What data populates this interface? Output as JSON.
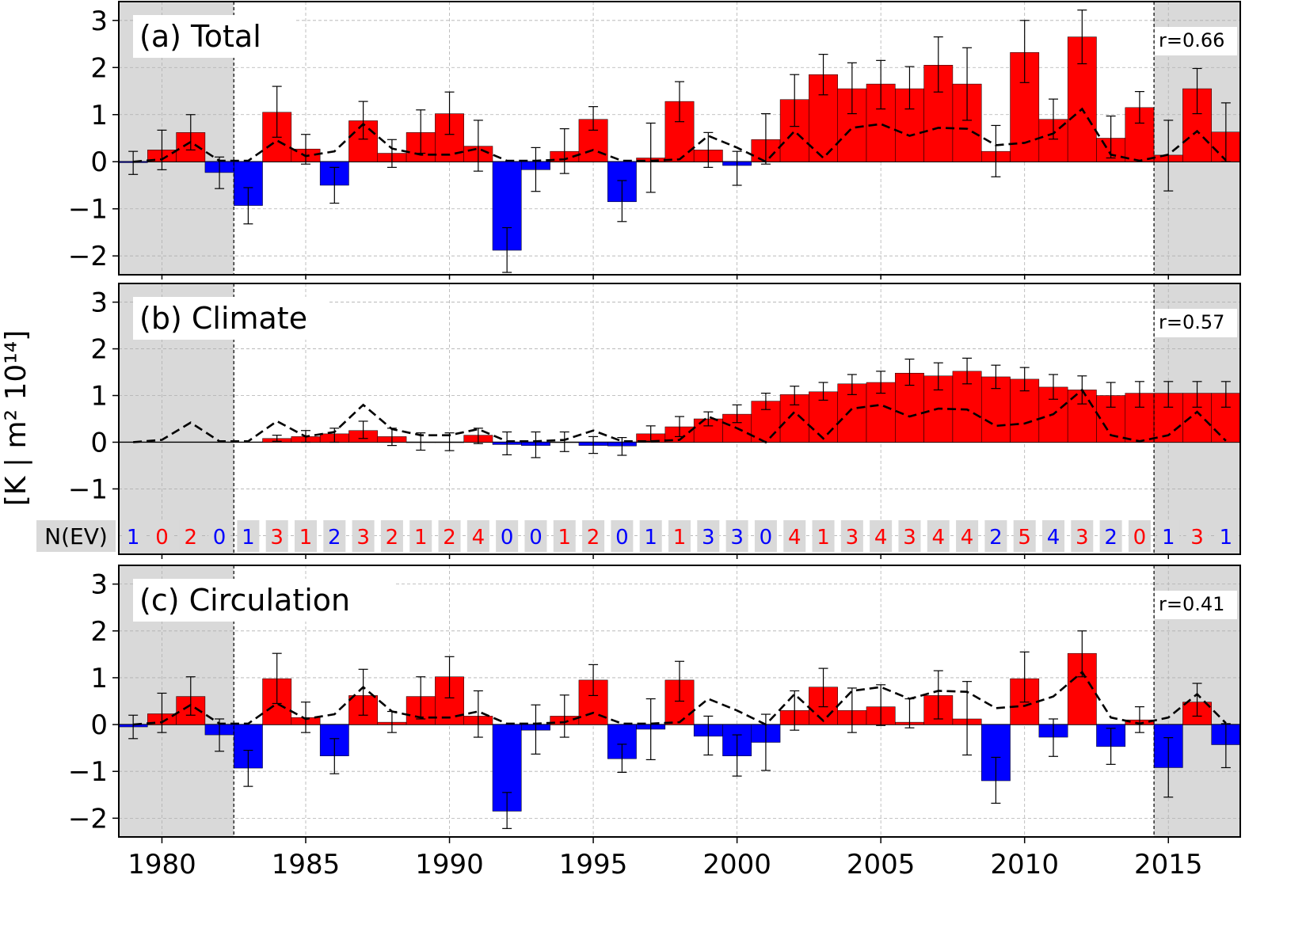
{
  "chart_data": [
    {
      "type": "bar",
      "title": "(a) Total",
      "annotation": "r=0.66",
      "x": [
        1979,
        1980,
        1981,
        1982,
        1983,
        1984,
        1985,
        1986,
        1987,
        1988,
        1989,
        1990,
        1991,
        1992,
        1993,
        1994,
        1995,
        1996,
        1997,
        1998,
        1999,
        2000,
        2001,
        2002,
        2003,
        2004,
        2005,
        2006,
        2007,
        2008,
        2009,
        2010,
        2011,
        2012,
        2013,
        2014,
        2015,
        2016,
        2017
      ],
      "values": [
        -0.02,
        0.25,
        0.62,
        -0.23,
        -0.93,
        1.05,
        0.27,
        -0.5,
        0.87,
        0.18,
        0.62,
        1.02,
        0.33,
        -1.88,
        -0.17,
        0.22,
        0.9,
        -0.85,
        0.08,
        1.28,
        0.25,
        -0.08,
        0.47,
        1.32,
        1.85,
        1.55,
        1.65,
        1.55,
        2.05,
        1.65,
        0.22,
        2.32,
        0.9,
        2.65,
        0.5,
        1.15,
        0.14,
        1.55,
        0.63
      ],
      "err_low": [
        -0.27,
        -0.17,
        0.25,
        -0.57,
        -1.32,
        0.52,
        -0.05,
        -0.88,
        0.48,
        -0.12,
        0.18,
        0.58,
        -0.2,
        -2.35,
        -0.63,
        -0.25,
        0.67,
        -1.27,
        -0.65,
        0.85,
        -0.12,
        -0.5,
        -0.05,
        0.75,
        1.42,
        1.02,
        1.12,
        1.12,
        1.48,
        0.88,
        -0.32,
        1.68,
        0.48,
        2.08,
        0.08,
        0.82,
        -0.62,
        1.02,
        0.0
      ],
      "err_high": [
        0.22,
        0.67,
        1.0,
        0.1,
        -0.55,
        1.6,
        0.58,
        -0.12,
        1.28,
        0.47,
        1.1,
        1.48,
        0.88,
        -1.4,
        0.3,
        0.7,
        1.17,
        -0.4,
        0.82,
        1.7,
        0.62,
        0.22,
        1.02,
        1.85,
        2.28,
        2.1,
        2.15,
        2.02,
        2.65,
        2.42,
        0.77,
        3.0,
        1.33,
        3.22,
        0.97,
        1.49,
        0.88,
        1.98,
        1.25
      ],
      "reference_dashed": [
        0.0,
        0.05,
        0.42,
        0.02,
        0.02,
        0.45,
        0.12,
        0.22,
        0.8,
        0.28,
        0.15,
        0.15,
        0.28,
        0.02,
        0.02,
        0.05,
        0.25,
        0.02,
        0.02,
        0.05,
        0.55,
        0.3,
        0.0,
        0.65,
        0.08,
        0.72,
        0.8,
        0.55,
        0.72,
        0.7,
        0.35,
        0.4,
        0.6,
        1.12,
        0.15,
        0.02,
        0.15,
        0.65,
        0.03
      ],
      "ylim": [
        -2.4,
        3.4
      ],
      "yticks": [
        "−2",
        "−1",
        "0",
        "1",
        "2",
        "3"
      ],
      "grid": true,
      "shaded_periods": [
        [
          1978.5,
          1982.5
        ],
        [
          2014.5,
          2017.5
        ]
      ]
    },
    {
      "type": "bar",
      "title": "(b) Climate",
      "annotation": "r=0.57",
      "ylabel": "[K | m² 10¹⁴]",
      "x": [
        1984,
        1985,
        1986,
        1987,
        1988,
        1989,
        1990,
        1991,
        1992,
        1993,
        1994,
        1995,
        1996,
        1997,
        1998,
        1999,
        2000,
        2001,
        2002,
        2003,
        2004,
        2005,
        2006,
        2007,
        2008,
        2009,
        2010,
        2011,
        2012,
        2013,
        2014,
        2015,
        2016,
        2017
      ],
      "values": [
        0.08,
        0.12,
        0.18,
        0.25,
        0.12,
        0.0,
        0.0,
        0.15,
        -0.05,
        -0.07,
        0.0,
        -0.07,
        -0.08,
        0.18,
        0.33,
        0.5,
        0.6,
        0.88,
        1.02,
        1.08,
        1.25,
        1.28,
        1.48,
        1.42,
        1.52,
        1.4,
        1.35,
        1.18,
        1.12,
        1.0,
        1.05,
        1.05,
        1.05,
        1.05
      ],
      "err_low": [
        0.02,
        0.0,
        0.0,
        0.08,
        -0.07,
        -0.17,
        -0.18,
        -0.03,
        -0.27,
        -0.33,
        -0.2,
        -0.24,
        -0.28,
        0.02,
        0.12,
        0.35,
        0.42,
        0.7,
        0.8,
        0.9,
        1.02,
        1.05,
        1.22,
        1.12,
        1.25,
        1.15,
        1.1,
        0.92,
        0.82,
        0.75,
        0.75,
        0.75,
        0.75,
        0.75
      ],
      "err_high": [
        0.15,
        0.25,
        0.3,
        0.45,
        0.3,
        0.2,
        0.2,
        0.3,
        0.22,
        0.22,
        0.22,
        0.12,
        0.1,
        0.35,
        0.55,
        0.65,
        0.8,
        1.05,
        1.2,
        1.28,
        1.45,
        1.52,
        1.78,
        1.7,
        1.8,
        1.65,
        1.6,
        1.45,
        1.42,
        1.28,
        1.3,
        1.3,
        1.3,
        1.3
      ],
      "reference_dashed": [
        0.0,
        0.05,
        0.42,
        0.02,
        0.02,
        0.45,
        0.12,
        0.22,
        0.8,
        0.28,
        0.15,
        0.15,
        0.28,
        0.02,
        0.02,
        0.05,
        0.25,
        0.02,
        0.02,
        0.05,
        0.55,
        0.3,
        0.0,
        0.65,
        0.08,
        0.72,
        0.8,
        0.55,
        0.72,
        0.7,
        0.35,
        0.4,
        0.6,
        1.12,
        0.15,
        0.02,
        0.15,
        0.65,
        0.03
      ],
      "reference_x": [
        1979,
        1980,
        1981,
        1982,
        1983,
        1984,
        1985,
        1986,
        1987,
        1988,
        1989,
        1990,
        1991,
        1992,
        1993,
        1994,
        1995,
        1996,
        1997,
        1998,
        1999,
        2000,
        2001,
        2002,
        2003,
        2004,
        2005,
        2006,
        2007,
        2008,
        2009,
        2010,
        2011,
        2012,
        2013,
        2014,
        2015,
        2016,
        2017
      ],
      "ylim": [
        -2.4,
        3.4
      ],
      "yticks": [
        "−1",
        "0",
        "1",
        "2",
        "3"
      ],
      "grid": true,
      "nev_label": "N(EV)",
      "nev_values": [
        "1",
        "0",
        "2",
        "0",
        "1",
        "3",
        "1",
        "2",
        "3",
        "2",
        "1",
        "2",
        "4",
        "0",
        "0",
        "1",
        "2",
        "0",
        "1",
        "1",
        "3",
        "3",
        "0",
        "4",
        "1",
        "3",
        "4",
        "3",
        "4",
        "4",
        "2",
        "5",
        "4",
        "3",
        "2",
        "0",
        "1",
        "3",
        "1"
      ],
      "nev_colors": [
        "#0000ff",
        "#ff0000",
        "#ff0000",
        "#0000ff",
        "#0000ff",
        "#ff0000",
        "#ff0000",
        "#0000ff",
        "#ff0000",
        "#ff0000",
        "#ff0000",
        "#ff0000",
        "#ff0000",
        "#0000ff",
        "#0000ff",
        "#ff0000",
        "#ff0000",
        "#0000ff",
        "#0000ff",
        "#ff0000",
        "#0000ff",
        "#0000ff",
        "#0000ff",
        "#ff0000",
        "#ff0000",
        "#ff0000",
        "#ff0000",
        "#ff0000",
        "#ff0000",
        "#ff0000",
        "#0000ff",
        "#ff0000",
        "#0000ff",
        "#ff0000",
        "#0000ff",
        "#ff0000",
        "#0000ff",
        "#ff0000",
        "#0000ff"
      ]
    },
    {
      "type": "bar",
      "title": "(c) Circulation",
      "annotation": "r=0.41",
      "x": [
        1979,
        1980,
        1981,
        1982,
        1983,
        1984,
        1985,
        1986,
        1987,
        1988,
        1989,
        1990,
        1991,
        1992,
        1993,
        1994,
        1995,
        1996,
        1997,
        1998,
        1999,
        2000,
        2001,
        2002,
        2003,
        2004,
        2005,
        2006,
        2007,
        2008,
        2009,
        2010,
        2011,
        2012,
        2013,
        2014,
        2015,
        2016,
        2017
      ],
      "values": [
        -0.05,
        0.23,
        0.6,
        -0.22,
        -0.93,
        0.98,
        0.15,
        -0.67,
        0.62,
        0.05,
        0.6,
        1.02,
        0.18,
        -1.85,
        -0.12,
        0.18,
        0.95,
        -0.73,
        -0.1,
        0.95,
        -0.25,
        -0.67,
        -0.38,
        0.3,
        0.8,
        0.3,
        0.38,
        0.05,
        0.62,
        0.12,
        -1.2,
        0.98,
        -0.27,
        1.52,
        -0.47,
        0.1,
        -0.92,
        0.48,
        -0.43
      ],
      "err_low": [
        -0.3,
        -0.17,
        0.2,
        -0.57,
        -1.32,
        0.45,
        -0.17,
        -1.05,
        0.2,
        -0.17,
        0.12,
        0.57,
        -0.27,
        -2.22,
        -0.63,
        -0.27,
        0.62,
        -1.02,
        -0.75,
        0.5,
        -0.65,
        -1.1,
        -0.98,
        -0.12,
        0.38,
        -0.17,
        -0.02,
        -0.07,
        0.12,
        -0.65,
        -1.68,
        0.48,
        -0.68,
        1.02,
        -0.85,
        -0.17,
        -1.55,
        0.18,
        -0.92
      ],
      "err_high": [
        0.2,
        0.67,
        1.02,
        0.12,
        -0.55,
        1.52,
        0.48,
        -0.3,
        1.18,
        0.28,
        1.02,
        1.45,
        0.72,
        -1.45,
        0.42,
        0.63,
        1.28,
        -0.42,
        0.55,
        1.35,
        0.18,
        -0.22,
        0.22,
        0.72,
        1.2,
        0.78,
        0.85,
        0.55,
        1.15,
        0.92,
        -0.7,
        1.55,
        0.12,
        2.0,
        -0.08,
        0.38,
        -0.28,
        0.88,
        0.02
      ],
      "reference_dashed": [
        0.0,
        0.05,
        0.42,
        0.02,
        0.02,
        0.45,
        0.12,
        0.22,
        0.8,
        0.28,
        0.15,
        0.15,
        0.28,
        0.02,
        0.02,
        0.05,
        0.25,
        0.02,
        0.02,
        0.05,
        0.55,
        0.3,
        0.0,
        0.65,
        0.08,
        0.72,
        0.8,
        0.55,
        0.72,
        0.7,
        0.35,
        0.4,
        0.6,
        1.12,
        0.15,
        0.02,
        0.15,
        0.65,
        0.03
      ],
      "ylim": [
        -2.4,
        3.4
      ],
      "yticks": [
        "−2",
        "−1",
        "0",
        "1",
        "2",
        "3"
      ],
      "xticks": [
        "1980",
        "1985",
        "1990",
        "1995",
        "2000",
        "2005",
        "2010",
        "2015"
      ],
      "grid": true
    }
  ],
  "colors": {
    "positive": "#ff0000",
    "negative": "#0000ff",
    "shade": "#d9d9d9",
    "nev_box": "#d9d9d9"
  }
}
